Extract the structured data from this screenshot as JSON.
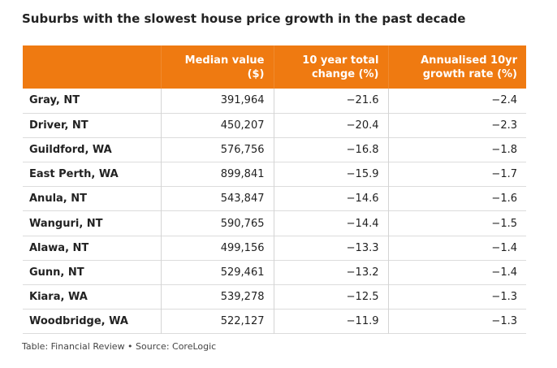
{
  "title": "Suburbs with the slowest house price growth in the past decade",
  "footer": "Table: Financial Review • Source: CoreLogic",
  "colors": {
    "header_bg": "#ef7a11",
    "header_text": "#ffffff"
  },
  "chart_data": {
    "type": "table",
    "title": "Suburbs with the slowest house price growth in the past decade",
    "columns": [
      {
        "line1": "",
        "line2": ""
      },
      {
        "line1": "Median value",
        "line2": "($)"
      },
      {
        "line1": "10 year total",
        "line2": "change (%)"
      },
      {
        "line1": "Annualised 10yr",
        "line2": "growth rate (%)"
      }
    ],
    "rows": [
      {
        "suburb": "Gray, NT",
        "median": "391,964",
        "change": "−21.6",
        "growth": "−2.4"
      },
      {
        "suburb": "Driver, NT",
        "median": "450,207",
        "change": "−20.4",
        "growth": "−2.3"
      },
      {
        "suburb": "Guildford, WA",
        "median": "576,756",
        "change": "−16.8",
        "growth": "−1.8"
      },
      {
        "suburb": "East Perth, WA",
        "median": "899,841",
        "change": "−15.9",
        "growth": "−1.7"
      },
      {
        "suburb": "Anula, NT",
        "median": "543,847",
        "change": "−14.6",
        "growth": "−1.6"
      },
      {
        "suburb": "Wanguri, NT",
        "median": "590,765",
        "change": "−14.4",
        "growth": "−1.5"
      },
      {
        "suburb": "Alawa, NT",
        "median": "499,156",
        "change": "−13.3",
        "growth": "−1.4"
      },
      {
        "suburb": "Gunn, NT",
        "median": "529,461",
        "change": "−13.2",
        "growth": "−1.4"
      },
      {
        "suburb": "Kiara, WA",
        "median": "539,278",
        "change": "−12.5",
        "growth": "−1.3"
      },
      {
        "suburb": "Woodbridge, WA",
        "median": "522,127",
        "change": "−11.9",
        "growth": "−1.3"
      }
    ]
  }
}
